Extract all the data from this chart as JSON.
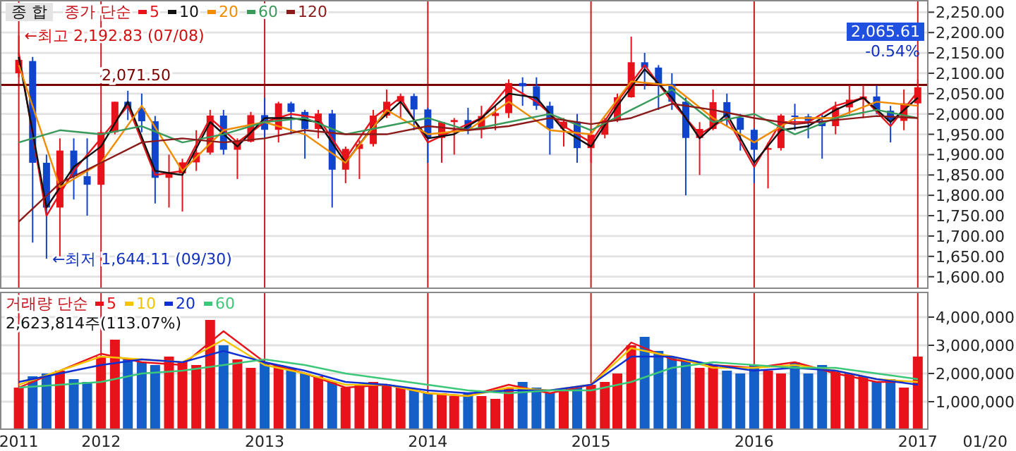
{
  "chart_data": [
    {
      "type": "candlestick",
      "title": "종 합",
      "legend": "top left",
      "legend_title": "종가 단순",
      "tick_labels": "y",
      "grid": true,
      "xlim": [
        "2011-05-20",
        "2017-01-25"
      ],
      "xticks": [
        {
          "value": "2011-07-01",
          "label": null
        },
        {
          "value": "2012-01-01",
          "label": null
        },
        {
          "value": "2013-01-01",
          "label": null
        },
        {
          "value": "2014-01-01",
          "label": null
        },
        {
          "value": "2015-01-01",
          "label": null
        },
        {
          "value": "2016-01-01",
          "label": null
        },
        {
          "value": "2017-01-01",
          "label": null
        }
      ],
      "ylim": [
        1570,
        2280
      ],
      "yticks": [
        {
          "value": 1600,
          "label": "1,600.00"
        },
        {
          "value": 1650,
          "label": "1,650.00"
        },
        {
          "value": 1700,
          "label": "1,700.00"
        },
        {
          "value": 1750,
          "label": "1,750.00"
        },
        {
          "value": 1800,
          "label": "1,800.00"
        },
        {
          "value": 1850,
          "label": "1,850.00"
        },
        {
          "value": 1900,
          "label": "1,900.00"
        },
        {
          "value": 1950,
          "label": "1,950.00"
        },
        {
          "value": 2000,
          "label": "2,000.00"
        },
        {
          "value": 2050,
          "label": "2,050.00"
        },
        {
          "value": 2100,
          "label": "2,100.00"
        },
        {
          "value": 2150,
          "label": "2,150.00"
        },
        {
          "value": 2200,
          "label": "2,200.00"
        },
        {
          "value": 2250,
          "label": "2,250.00"
        }
      ],
      "x": [
        "2011-07",
        "2011-08",
        "2011-09",
        "2011-10",
        "2011-11",
        "2011-12",
        "2012-01",
        "2012-02",
        "2012-03",
        "2012-04",
        "2012-05",
        "2012-06",
        "2012-07",
        "2012-08",
        "2012-09",
        "2012-10",
        "2012-11",
        "2012-12",
        "2013-01",
        "2013-02",
        "2013-03",
        "2013-04",
        "2013-05",
        "2013-06",
        "2013-07",
        "2013-08",
        "2013-09",
        "2013-10",
        "2013-11",
        "2013-12",
        "2014-01",
        "2014-02",
        "2014-03",
        "2014-04",
        "2014-05",
        "2014-06",
        "2014-07",
        "2014-08",
        "2014-09",
        "2014-10",
        "2014-11",
        "2014-12",
        "2015-01",
        "2015-02",
        "2015-03",
        "2015-04",
        "2015-05",
        "2015-06",
        "2015-07",
        "2015-08",
        "2015-09",
        "2015-10",
        "2015-11",
        "2015-12",
        "2016-01",
        "2016-02",
        "2016-03",
        "2016-04",
        "2016-05",
        "2016-06",
        "2016-07",
        "2016-08",
        "2016-09",
        "2016-10",
        "2016-11",
        "2016-12",
        "2017-01"
      ],
      "ohlc": [
        [
          2100,
          2192.83,
          2090,
          2133
        ],
        [
          2130,
          2140,
          1684,
          1880
        ],
        [
          1880,
          1900,
          1644.11,
          1770
        ],
        [
          1770,
          1940,
          1650,
          1910
        ],
        [
          1910,
          1940,
          1790,
          1847
        ],
        [
          1847,
          1940,
          1750,
          1826
        ],
        [
          1826,
          1960,
          1820,
          1955
        ],
        [
          1955,
          2030,
          1950,
          2030
        ],
        [
          2030,
          2057,
          1985,
          2014
        ],
        [
          2014,
          2050,
          1955,
          1982
        ],
        [
          1982,
          1995,
          1780,
          1843
        ],
        [
          1843,
          1900,
          1770,
          1854
        ],
        [
          1854,
          1890,
          1760,
          1881
        ],
        [
          1881,
          1960,
          1860,
          1905
        ],
        [
          1905,
          2010,
          1900,
          1996
        ],
        [
          1996,
          2010,
          1900,
          1912
        ],
        [
          1912,
          1940,
          1840,
          1932
        ],
        [
          1932,
          2005,
          1930,
          1997
        ],
        [
          1997,
          2040,
          1940,
          1961
        ],
        [
          1961,
          2030,
          1930,
          2026
        ],
        [
          2026,
          2030,
          1950,
          2005
        ],
        [
          2005,
          2010,
          1890,
          1963
        ],
        [
          1963,
          2010,
          1940,
          2001
        ],
        [
          2001,
          2010,
          1770,
          1863
        ],
        [
          1863,
          1920,
          1830,
          1914
        ],
        [
          1914,
          1935,
          1840,
          1926
        ],
        [
          1926,
          2010,
          1920,
          1996
        ],
        [
          1996,
          2060,
          1990,
          2030
        ],
        [
          2030,
          2050,
          1990,
          2044
        ],
        [
          2044,
          2050,
          1960,
          2011
        ],
        [
          2011,
          2015,
          1880,
          1941
        ],
        [
          1941,
          1980,
          1880,
          1980
        ],
        [
          1980,
          1990,
          1900,
          1985
        ],
        [
          1985,
          2015,
          1950,
          1961
        ],
        [
          1961,
          2020,
          1940,
          1995
        ],
        [
          1995,
          2020,
          1960,
          2002
        ],
        [
          2002,
          2085,
          1990,
          2076
        ],
        [
          2076,
          2090,
          2020,
          2068
        ],
        [
          2068,
          2090,
          2010,
          2020
        ],
        [
          2020,
          2030,
          1900,
          1964
        ],
        [
          1964,
          1990,
          1920,
          1981
        ],
        [
          1981,
          2000,
          1880,
          1916
        ],
        [
          1916,
          1965,
          1880,
          1949
        ],
        [
          1949,
          1990,
          1940,
          1985
        ],
        [
          1985,
          2050,
          1980,
          2041
        ],
        [
          2041,
          2190,
          2040,
          2127
        ],
        [
          2127,
          2150,
          2060,
          2114
        ],
        [
          2114,
          2120,
          2010,
          2074
        ],
        [
          2074,
          2100,
          2010,
          2030
        ],
        [
          2030,
          2040,
          1800,
          1941
        ],
        [
          1941,
          1980,
          1850,
          1963
        ],
        [
          1963,
          2060,
          1960,
          2029
        ],
        [
          2029,
          2050,
          1970,
          1991
        ],
        [
          1991,
          2000,
          1910,
          1961
        ],
        [
          1961,
          1965,
          1830,
          1912
        ],
        [
          1912,
          1930,
          1817,
          1916
        ],
        [
          1916,
          2000,
          1910,
          1996
        ],
        [
          1996,
          2025,
          1960,
          1994
        ],
        [
          1994,
          2000,
          1940,
          1983
        ],
        [
          1983,
          2000,
          1890,
          1970
        ],
        [
          1970,
          2030,
          1950,
          2016
        ],
        [
          2016,
          2070,
          2000,
          2035
        ],
        [
          2035,
          2070,
          1990,
          2043
        ],
        [
          2043,
          2070,
          2000,
          2008
        ],
        [
          2008,
          2020,
          1930,
          1983
        ],
        [
          1983,
          2060,
          1960,
          2026
        ],
        [
          2026,
          2085,
          2020,
          2065.61
        ]
      ],
      "series": [
        {
          "type": "line",
          "name": "5",
          "color": "#e8121a",
          "x": [
            "2011-07",
            "2011-09",
            "2011-11",
            "2012-01",
            "2012-03",
            "2012-05",
            "2012-07",
            "2012-09",
            "2012-11",
            "2013-01",
            "2013-03",
            "2013-05",
            "2013-07",
            "2013-09",
            "2013-11",
            "2014-01",
            "2014-03",
            "2014-05",
            "2014-07",
            "2014-09",
            "2014-11",
            "2015-01",
            "2015-03",
            "2015-05",
            "2015-07",
            "2015-09",
            "2015-11",
            "2016-01",
            "2016-03",
            "2016-05",
            "2016-07",
            "2016-09",
            "2016-11",
            "2017-01"
          ],
          "values": [
            2150,
            1750,
            1860,
            1940,
            2020,
            1850,
            1860,
            1990,
            1930,
            1980,
            2000,
            1990,
            1890,
            1990,
            2040,
            1930,
            1960,
            1990,
            2070,
            2030,
            1970,
            1930,
            2030,
            2120,
            2030,
            1950,
            1990,
            1870,
            1980,
            1980,
            2020,
            2040,
            1970,
            2055
          ]
        },
        {
          "type": "line",
          "name": "10",
          "color": "#111111",
          "x": [
            "2011-07",
            "2011-09",
            "2011-11",
            "2012-01",
            "2012-03",
            "2012-05",
            "2012-07",
            "2012-09",
            "2012-11",
            "2013-01",
            "2013-03",
            "2013-05",
            "2013-07",
            "2013-09",
            "2013-11",
            "2014-01",
            "2014-03",
            "2014-05",
            "2014-07",
            "2014-09",
            "2014-11",
            "2015-01",
            "2015-03",
            "2015-05",
            "2015-07",
            "2015-09",
            "2015-11",
            "2016-01",
            "2016-03",
            "2016-05",
            "2016-07",
            "2016-09",
            "2016-11",
            "2017-01"
          ],
          "values": [
            2140,
            1770,
            1870,
            1920,
            2030,
            1860,
            1850,
            1980,
            1920,
            1990,
            1990,
            1980,
            1880,
            1970,
            2030,
            1940,
            1950,
            1990,
            2050,
            2040,
            1960,
            1920,
            2020,
            2110,
            2040,
            1940,
            2000,
            1880,
            1960,
            1970,
            2010,
            2040,
            1980,
            2040
          ]
        },
        {
          "type": "line",
          "name": "20",
          "color": "#f08c00",
          "x": [
            "2011-07",
            "2011-10",
            "2012-01",
            "2012-04",
            "2012-07",
            "2012-10",
            "2013-01",
            "2013-04",
            "2013-07",
            "2013-10",
            "2014-01",
            "2014-04",
            "2014-07",
            "2014-10",
            "2015-01",
            "2015-04",
            "2015-07",
            "2015-10",
            "2016-01",
            "2016-04",
            "2016-07",
            "2016-10",
            "2017-01"
          ],
          "values": [
            2120,
            1820,
            1880,
            2020,
            1860,
            1960,
            1980,
            1950,
            1880,
            2010,
            1950,
            1960,
            2030,
            1960,
            1950,
            2080,
            2070,
            1990,
            1930,
            1990,
            1990,
            2030,
            2020
          ]
        },
        {
          "type": "line",
          "name": "60",
          "color": "#3a9a5c",
          "x": [
            "2011-07",
            "2011-10",
            "2012-01",
            "2012-04",
            "2012-07",
            "2012-10",
            "2013-01",
            "2013-04",
            "2013-07",
            "2013-10",
            "2014-01",
            "2014-04",
            "2014-07",
            "2014-10",
            "2015-01",
            "2015-04",
            "2015-07",
            "2015-10",
            "2016-01",
            "2016-04",
            "2016-07",
            "2016-10",
            "2017-01"
          ],
          "values": [
            1930,
            1960,
            1950,
            1970,
            1930,
            1950,
            1980,
            1990,
            1950,
            1970,
            1990,
            1960,
            1980,
            2000,
            1960,
            2010,
            2060,
            1980,
            2000,
            1950,
            1990,
            2010,
            1990
          ]
        },
        {
          "type": "line",
          "name": "120",
          "color": "#8b1a1a",
          "x": [
            "2011-07",
            "2011-10",
            "2012-01",
            "2012-04",
            "2012-07",
            "2012-10",
            "2013-01",
            "2013-04",
            "2013-07",
            "2013-10",
            "2014-01",
            "2014-04",
            "2014-07",
            "2014-10",
            "2015-01",
            "2015-04",
            "2015-07",
            "2015-10",
            "2016-01",
            "2016-04",
            "2016-07",
            "2016-10",
            "2017-01"
          ],
          "values": [
            1735,
            1830,
            1880,
            1930,
            1940,
            1930,
            1940,
            1960,
            1950,
            1950,
            1970,
            1960,
            1970,
            1990,
            1975,
            1990,
            2025,
            2010,
            1990,
            1975,
            1985,
            1995,
            1990
          ]
        }
      ],
      "ref_lines": [
        {
          "axis": "y",
          "value": 2071.5,
          "label": "2,071.50",
          "color": "#7a0000"
        }
      ],
      "annotations": [
        {
          "text": "←최고 2,192.83 (07/08)",
          "x": "2011-07",
          "y": 2192.83
        },
        {
          "text": "←최저 1,644.11 (09/30)",
          "x": "2011-09",
          "y": 1644.11
        },
        "2,065.61",
        "-0.54%"
      ]
    },
    {
      "type": "bar",
      "legend": "top left",
      "legend_title": "거래량 단순",
      "grid": true,
      "xlim": [
        "2011-05-20",
        "2017-01-25"
      ],
      "xticks": [
        {
          "value": "2011-07-01",
          "label": "2011"
        },
        {
          "value": "2012-01-01",
          "label": "2012"
        },
        {
          "value": "2013-01-01",
          "label": "2013"
        },
        {
          "value": "2014-01-01",
          "label": "2014"
        },
        {
          "value": "2015-01-01",
          "label": "2015"
        },
        {
          "value": "2016-01-01",
          "label": "2016"
        },
        {
          "value": "2017-01-01",
          "label": "2017"
        }
      ],
      "ylim": [
        0,
        4900000
      ],
      "yticks": [
        {
          "value": 1000000,
          "label": "1,000,000"
        },
        {
          "value": 2000000,
          "label": "2,000,000"
        },
        {
          "value": 3000000,
          "label": "3,000,000"
        },
        {
          "value": 4000000,
          "label": "4,000,000"
        }
      ],
      "x": [
        "2011-07",
        "2011-08",
        "2011-09",
        "2011-10",
        "2011-11",
        "2011-12",
        "2012-01",
        "2012-02",
        "2012-03",
        "2012-04",
        "2012-05",
        "2012-06",
        "2012-07",
        "2012-08",
        "2012-09",
        "2012-10",
        "2012-11",
        "2012-12",
        "2013-01",
        "2013-02",
        "2013-03",
        "2013-04",
        "2013-05",
        "2013-06",
        "2013-07",
        "2013-08",
        "2013-09",
        "2013-10",
        "2013-11",
        "2013-12",
        "2014-01",
        "2014-02",
        "2014-03",
        "2014-04",
        "2014-05",
        "2014-06",
        "2014-07",
        "2014-08",
        "2014-09",
        "2014-10",
        "2014-11",
        "2014-12",
        "2015-01",
        "2015-02",
        "2015-03",
        "2015-04",
        "2015-05",
        "2015-06",
        "2015-07",
        "2015-08",
        "2015-09",
        "2015-10",
        "2015-11",
        "2015-12",
        "2016-01",
        "2016-02",
        "2016-03",
        "2016-04",
        "2016-05",
        "2016-06",
        "2016-07",
        "2016-08",
        "2016-09",
        "2016-10",
        "2016-11",
        "2016-12",
        "2017-01"
      ],
      "values": [
        1500000,
        1900000,
        2000000,
        2100000,
        1800000,
        1700000,
        2600000,
        3200000,
        2500000,
        2400000,
        2300000,
        2600000,
        2400000,
        2300000,
        3900000,
        3000000,
        2500000,
        2200000,
        2400000,
        2300000,
        2200000,
        2000000,
        1900000,
        1700000,
        1500000,
        1600000,
        1700000,
        1600000,
        1500000,
        1400000,
        1300000,
        1300000,
        1200000,
        1300000,
        1200000,
        1100000,
        1500000,
        1700000,
        1500000,
        1300000,
        1400000,
        1500000,
        1600000,
        1700000,
        2000000,
        3000000,
        3300000,
        2800000,
        2600000,
        2500000,
        2200000,
        2300000,
        2100000,
        2000000,
        2300000,
        2100000,
        2000000,
        2400000,
        2000000,
        2300000,
        2100000,
        2000000,
        1900000,
        1700000,
        1800000,
        1500000,
        2600000
      ],
      "colors": [
        "#e8121a",
        "#1560c8",
        "#1560c8",
        "#e8121a",
        "#1560c8",
        "#1560c8",
        "#e8121a",
        "#e8121a",
        "#1560c8",
        "#1560c8",
        "#1560c8",
        "#e8121a",
        "#e8121a",
        "#e8121a",
        "#e8121a",
        "#1560c8",
        "#e8121a",
        "#e8121a",
        "#1560c8",
        "#e8121a",
        "#1560c8",
        "#1560c8",
        "#e8121a",
        "#1560c8",
        "#e8121a",
        "#e8121a",
        "#e8121a",
        "#e8121a",
        "#e8121a",
        "#1560c8",
        "#1560c8",
        "#e8121a",
        "#e8121a",
        "#1560c8",
        "#e8121a",
        "#e8121a",
        "#e8121a",
        "#1560c8",
        "#1560c8",
        "#1560c8",
        "#e8121a",
        "#1560c8",
        "#e8121a",
        "#e8121a",
        "#e8121a",
        "#e8121a",
        "#1560c8",
        "#1560c8",
        "#1560c8",
        "#1560c8",
        "#e8121a",
        "#e8121a",
        "#1560c8",
        "#1560c8",
        "#1560c8",
        "#e8121a",
        "#e8121a",
        "#1560c8",
        "#1560c8",
        "#1560c8",
        "#e8121a",
        "#e8121a",
        "#e8121a",
        "#1560c8",
        "#1560c8",
        "#e8121a",
        "#e8121a"
      ],
      "series": [
        {
          "type": "line",
          "name": "5",
          "color": "#e8121a",
          "x": [
            "2011-07",
            "2011-10",
            "2012-01",
            "2012-04",
            "2012-07",
            "2012-10",
            "2013-01",
            "2013-04",
            "2013-07",
            "2013-10",
            "2014-01",
            "2014-04",
            "2014-07",
            "2014-10",
            "2015-01",
            "2015-04",
            "2015-07",
            "2015-10",
            "2016-01",
            "2016-04",
            "2016-07",
            "2016-10",
            "2016-12"
          ],
          "values": [
            1500000,
            2100000,
            2700000,
            2400000,
            2300000,
            3500000,
            2400000,
            2000000,
            1500000,
            1600000,
            1300000,
            1200000,
            1600000,
            1300000,
            1600000,
            3100000,
            2500000,
            2300000,
            2200000,
            2400000,
            2000000,
            1700000,
            1700000
          ]
        },
        {
          "type": "line",
          "name": "10",
          "color": "#f5c400",
          "x": [
            "2011-07",
            "2011-10",
            "2012-01",
            "2012-04",
            "2012-07",
            "2012-10",
            "2013-01",
            "2013-04",
            "2013-07",
            "2013-10",
            "2014-01",
            "2014-04",
            "2014-07",
            "2014-10",
            "2015-01",
            "2015-04",
            "2015-07",
            "2015-10",
            "2016-01",
            "2016-04",
            "2016-07",
            "2016-10",
            "2017-01"
          ],
          "values": [
            1600000,
            2100000,
            2600000,
            2500000,
            2400000,
            3200000,
            2300000,
            2000000,
            1600000,
            1600000,
            1300000,
            1200000,
            1500000,
            1400000,
            1600000,
            2900000,
            2600000,
            2200000,
            2200000,
            2300000,
            2100000,
            1800000,
            1700000
          ]
        },
        {
          "type": "line",
          "name": "20",
          "color": "#1030d0",
          "x": [
            "2011-07",
            "2011-10",
            "2012-01",
            "2012-04",
            "2012-07",
            "2012-10",
            "2013-01",
            "2013-04",
            "2013-07",
            "2013-10",
            "2014-01",
            "2014-04",
            "2014-07",
            "2014-10",
            "2015-01",
            "2015-04",
            "2015-07",
            "2015-10",
            "2016-01",
            "2016-04",
            "2016-07",
            "2016-10",
            "2017-01"
          ],
          "values": [
            1700000,
            2000000,
            2300000,
            2500000,
            2400000,
            2800000,
            2400000,
            2100000,
            1700000,
            1600000,
            1400000,
            1300000,
            1400000,
            1400000,
            1600000,
            2600000,
            2600000,
            2300000,
            2100000,
            2200000,
            2100000,
            1800000,
            1600000
          ]
        },
        {
          "type": "line",
          "name": "60",
          "color": "#3cc878",
          "x": [
            "2011-07",
            "2011-10",
            "2012-01",
            "2012-04",
            "2012-07",
            "2012-10",
            "2013-01",
            "2013-04",
            "2013-07",
            "2013-10",
            "2014-01",
            "2014-04",
            "2014-07",
            "2014-10",
            "2015-01",
            "2015-04",
            "2015-07",
            "2015-10",
            "2016-01",
            "2016-04",
            "2016-07",
            "2016-10",
            "2017-01"
          ],
          "values": [
            1500000,
            1600000,
            1700000,
            2000000,
            2100000,
            2300000,
            2500000,
            2300000,
            2000000,
            1800000,
            1600000,
            1400000,
            1300000,
            1400000,
            1400000,
            1700000,
            2200000,
            2400000,
            2300000,
            2200000,
            2200000,
            2000000,
            1800000
          ]
        }
      ],
      "annotations": [
        "2,623,814주(113.07%)",
        "01/20"
      ]
    }
  ]
}
